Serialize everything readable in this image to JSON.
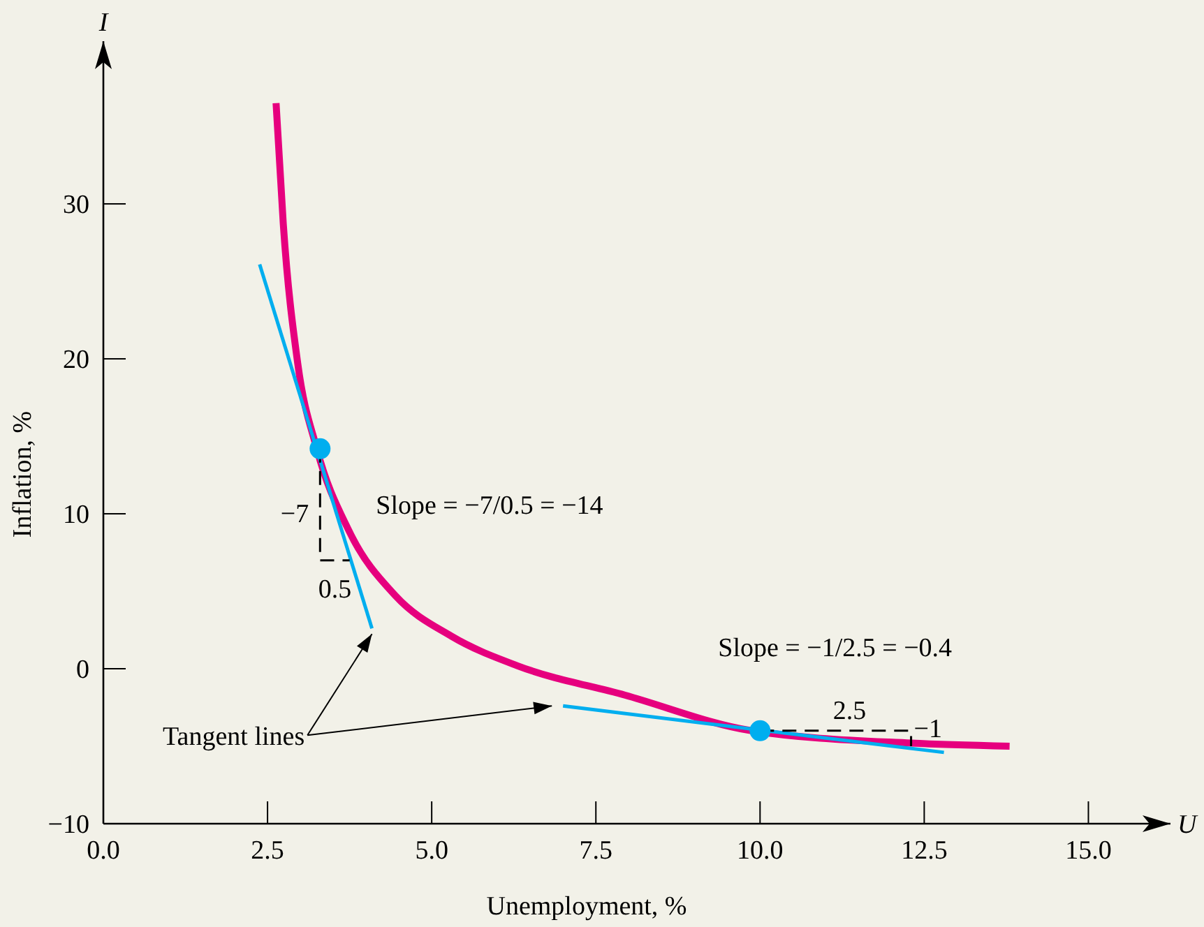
{
  "chart_data": {
    "type": "line",
    "xlabel": "Unemployment, %",
    "ylabel": "Inflation, %",
    "xlim": [
      0,
      16.25
    ],
    "ylim": [
      -10,
      40.5
    ],
    "xticks": [
      {
        "value": 0,
        "label": "0.0"
      },
      {
        "value": 2.5,
        "label": "2.5"
      },
      {
        "value": 5,
        "label": "5.0"
      },
      {
        "value": 7.5,
        "label": "7.5"
      },
      {
        "value": 10,
        "label": "10.0"
      },
      {
        "value": 12.5,
        "label": "12.5"
      },
      {
        "value": 15,
        "label": "15.0"
      }
    ],
    "yticks": [
      {
        "value": -10,
        "label": "−10"
      },
      0,
      10,
      20,
      30
    ],
    "grid": false,
    "series": [
      {
        "color": "#e6007e",
        "x": [
          2.63,
          2.74,
          2.96,
          3.25,
          3.74,
          4.45,
          5.3,
          6.3,
          7.94,
          9.87,
          12.3,
          13.8
        ],
        "values": [
          36.5,
          28.7,
          19.7,
          14.2,
          8.9,
          4.7,
          2.1,
          0.2,
          -1.7,
          -4.0,
          -4.8,
          -5.0
        ]
      },
      {
        "color": "#00aeef",
        "x": [
          2.38,
          4.09
        ],
        "values": [
          26.1,
          2.6
        ]
      },
      {
        "color": "#00aeef",
        "x": [
          7.0,
          12.8
        ],
        "values": [
          -2.4,
          -5.4
        ]
      },
      {
        "color": "#000000",
        "line_style": "dashed",
        "x": [
          3.3,
          3.3,
          3.75
        ],
        "values": [
          14.2,
          7.0,
          7.0
        ]
      },
      {
        "color": "#000000",
        "line_style": "dashed",
        "x": [
          10,
          12.3,
          12.3
        ],
        "values": [
          -4.0,
          -4.0,
          -5.0
        ]
      },
      {
        "type": "scatter",
        "color": "#00aeef",
        "marker": "circle",
        "x": [
          3.3,
          10
        ],
        "values": [
          14.2,
          -4.0
        ]
      }
    ],
    "annotations": [
      "I",
      "U",
      "Slope = −7/0.5 = −14",
      "Slope = −1/2.5 = −0.4",
      "−7",
      "0.5",
      "2.5",
      "−1",
      {
        "text": "Tangent lines",
        "x": 4.09,
        "y": 2.6
      }
    ]
  }
}
